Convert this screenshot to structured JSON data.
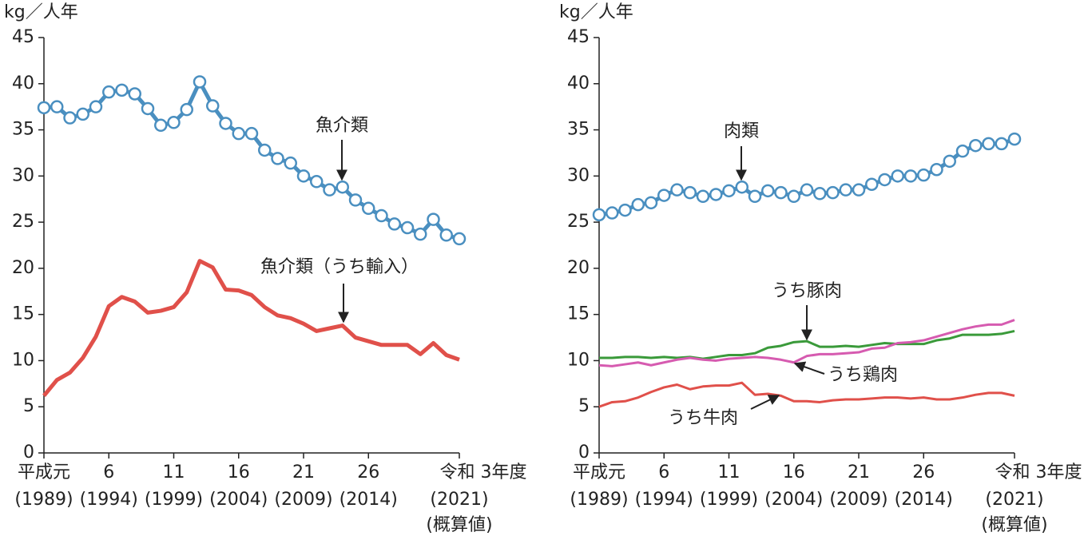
{
  "chart_data": [
    {
      "type": "line",
      "ylabel": "kg／人年",
      "x": [
        1989,
        1990,
        1991,
        1992,
        1993,
        1994,
        1995,
        1996,
        1997,
        1998,
        1999,
        2000,
        2001,
        2002,
        2003,
        2004,
        2005,
        2006,
        2007,
        2008,
        2009,
        2010,
        2011,
        2012,
        2013,
        2014,
        2015,
        2016,
        2017,
        2018,
        2019,
        2020,
        2021
      ],
      "xlim": [
        1989,
        2021
      ],
      "xticks": [
        {
          "value": 1989,
          "label": "平成元"
        },
        {
          "value": 1994,
          "label": "6"
        },
        {
          "value": 1999,
          "label": "11"
        },
        {
          "value": 2004,
          "label": "16"
        },
        {
          "value": 2009,
          "label": "21"
        },
        {
          "value": 2014,
          "label": "26"
        },
        {
          "value": 2021,
          "label": "令和 3年度"
        }
      ],
      "xtick_years": [
        "(1989)",
        "(1994)",
        "(1999)",
        "(2004)",
        "(2009)",
        "(2014)",
        "(2021)"
      ],
      "xtick_note": "(概算値)",
      "ylim": [
        0,
        45
      ],
      "yticks": [
        0,
        5,
        10,
        15,
        20,
        25,
        30,
        35,
        40,
        45
      ],
      "series": [
        {
          "name": "魚介類",
          "color": "#4a8fc0",
          "marker": true,
          "values": [
            37.4,
            37.5,
            36.3,
            36.7,
            37.5,
            39.1,
            39.3,
            38.9,
            37.3,
            35.5,
            35.8,
            37.2,
            40.2,
            37.6,
            35.7,
            34.6,
            34.6,
            32.8,
            31.9,
            31.4,
            30.0,
            29.4,
            28.5,
            28.8,
            27.4,
            26.5,
            25.7,
            24.8,
            24.4,
            23.7,
            25.3,
            23.6,
            23.2
          ]
        },
        {
          "name": "魚介類（うち輸入）",
          "color": "#e0504a",
          "marker": false,
          "values": [
            6.2,
            7.9,
            8.7,
            10.3,
            12.6,
            15.9,
            16.9,
            16.4,
            15.2,
            15.4,
            15.8,
            17.4,
            20.8,
            20.1,
            17.7,
            17.6,
            17.1,
            15.8,
            14.9,
            14.6,
            14.0,
            13.2,
            13.5,
            13.8,
            12.5,
            12.1,
            11.7,
            11.7,
            11.7,
            10.7,
            11.9,
            10.6,
            10.1
          ]
        }
      ]
    },
    {
      "type": "line",
      "ylabel": "kg／人年",
      "x": [
        1989,
        1990,
        1991,
        1992,
        1993,
        1994,
        1995,
        1996,
        1997,
        1998,
        1999,
        2000,
        2001,
        2002,
        2003,
        2004,
        2005,
        2006,
        2007,
        2008,
        2009,
        2010,
        2011,
        2012,
        2013,
        2014,
        2015,
        2016,
        2017,
        2018,
        2019,
        2020,
        2021
      ],
      "xlim": [
        1989,
        2021
      ],
      "xticks": [
        {
          "value": 1989,
          "label": "平成元"
        },
        {
          "value": 1994,
          "label": "6"
        },
        {
          "value": 1999,
          "label": "11"
        },
        {
          "value": 2004,
          "label": "16"
        },
        {
          "value": 2009,
          "label": "21"
        },
        {
          "value": 2014,
          "label": "26"
        },
        {
          "value": 2021,
          "label": "令和 3年度"
        }
      ],
      "xtick_years": [
        "(1989)",
        "(1994)",
        "(1999)",
        "(2004)",
        "(2009)",
        "(2014)",
        "(2021)"
      ],
      "xtick_note": "(概算値)",
      "ylim": [
        0,
        45
      ],
      "yticks": [
        0,
        5,
        10,
        15,
        20,
        25,
        30,
        35,
        40,
        45
      ],
      "series": [
        {
          "name": "肉類",
          "color": "#4a8fc0",
          "marker": true,
          "values": [
            25.8,
            26.0,
            26.3,
            26.9,
            27.1,
            27.9,
            28.5,
            28.2,
            27.8,
            28.0,
            28.4,
            28.8,
            27.8,
            28.4,
            28.2,
            27.8,
            28.5,
            28.1,
            28.2,
            28.5,
            28.5,
            29.1,
            29.6,
            30.0,
            30.0,
            30.1,
            30.7,
            31.6,
            32.7,
            33.3,
            33.5,
            33.5,
            34.0
          ]
        },
        {
          "name": "うち豚肉",
          "color": "#3a9a3a",
          "marker": false,
          "values": [
            10.3,
            10.3,
            10.4,
            10.4,
            10.3,
            10.4,
            10.3,
            10.4,
            10.2,
            10.4,
            10.6,
            10.6,
            10.8,
            11.4,
            11.6,
            12.0,
            12.1,
            11.5,
            11.5,
            11.6,
            11.5,
            11.7,
            11.9,
            11.8,
            11.8,
            11.8,
            12.2,
            12.4,
            12.8,
            12.8,
            12.8,
            12.9,
            13.2
          ]
        },
        {
          "name": "うち鶏肉",
          "color": "#d65bb0",
          "marker": false,
          "values": [
            9.5,
            9.4,
            9.6,
            9.8,
            9.5,
            9.8,
            10.1,
            10.3,
            10.1,
            10.0,
            10.2,
            10.3,
            10.4,
            10.3,
            10.1,
            9.8,
            10.5,
            10.7,
            10.7,
            10.8,
            10.9,
            11.3,
            11.4,
            11.9,
            12.0,
            12.2,
            12.6,
            13.0,
            13.4,
            13.7,
            13.9,
            13.9,
            14.4
          ]
        },
        {
          "name": "うち牛肉",
          "color": "#e0504a",
          "marker": false,
          "values": [
            5.0,
            5.5,
            5.6,
            6.0,
            6.6,
            7.1,
            7.4,
            6.9,
            7.2,
            7.3,
            7.3,
            7.6,
            6.3,
            6.4,
            6.2,
            5.6,
            5.6,
            5.5,
            5.7,
            5.8,
            5.8,
            5.9,
            6.0,
            6.0,
            5.9,
            6.0,
            5.8,
            5.8,
            6.0,
            6.3,
            6.5,
            6.5,
            6.2
          ]
        }
      ]
    }
  ]
}
